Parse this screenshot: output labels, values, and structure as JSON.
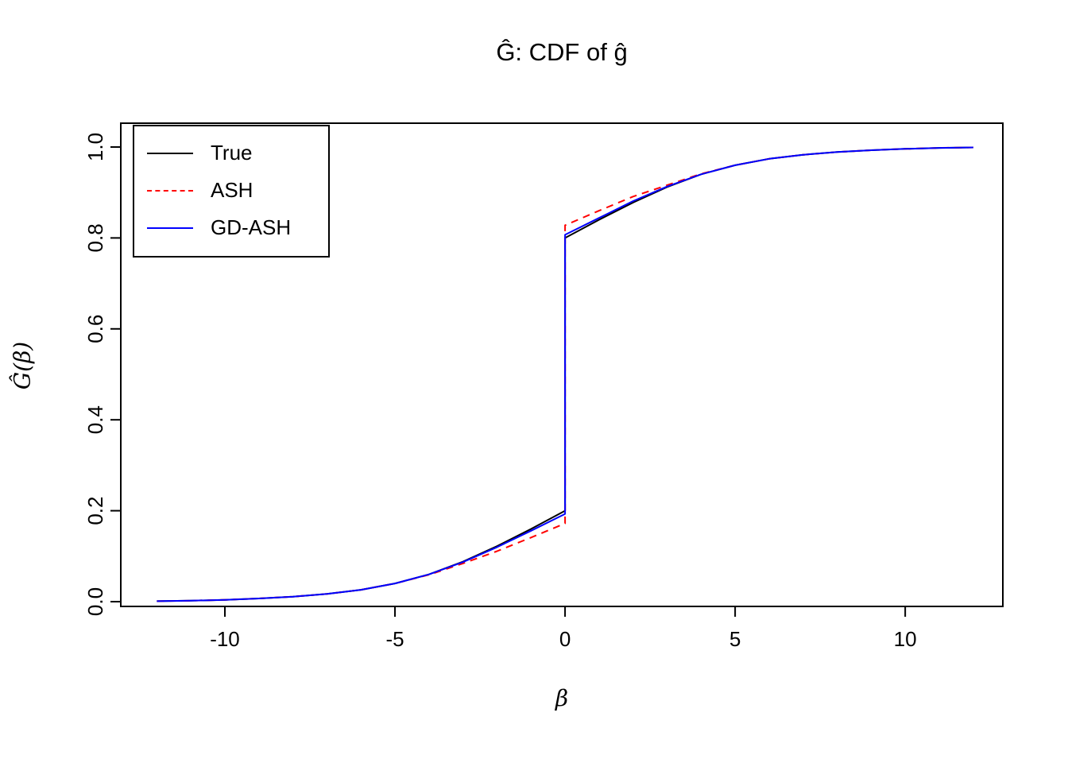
{
  "page": {
    "title": "Ĝ: CDF of ĝ"
  },
  "axes": {
    "x": {
      "label": "β",
      "tick_values": [
        -10,
        -5,
        0,
        5,
        10
      ],
      "tick_labels": [
        "-10",
        "-5",
        "0",
        "5",
        "10"
      ],
      "range": [
        -13.06,
        12.87
      ]
    },
    "y": {
      "label": "Ĝ(β)",
      "tick_values": [
        0,
        0.2,
        0.4,
        0.6,
        0.8,
        1.0
      ],
      "tick_labels": [
        "0.0",
        "0.2",
        "0.4",
        "0.6",
        "0.8",
        "1.0"
      ],
      "range": [
        -0.0105,
        1.0524
      ]
    }
  },
  "legend": {
    "items": [
      {
        "label": "True",
        "color": "#000000",
        "dash": "solid"
      },
      {
        "label": "ASH",
        "color": "#FF0000",
        "dash": "dashed"
      },
      {
        "label": "GD-ASH",
        "color": "#0000FF",
        "dash": "solid"
      }
    ]
  },
  "chart_data": {
    "type": "line",
    "title": "Ĝ: CDF of ĝ",
    "xlabel": "β",
    "ylabel": "Ĝ(β)",
    "xlim": [
      -12,
      12
    ],
    "ylim": [
      0,
      1
    ],
    "grid": false,
    "legend_position": "top-left",
    "x": [
      -12,
      -11,
      -10,
      -9,
      -8,
      -7,
      -6,
      -5,
      -4,
      -3,
      -2,
      -1,
      0,
      0,
      1,
      2,
      3,
      4,
      5,
      6,
      7,
      8,
      9,
      10,
      11,
      12
    ],
    "series": [
      {
        "name": "True",
        "color": "#000000",
        "style": "solid",
        "values": [
          0.001,
          0.002,
          0.004,
          0.007,
          0.011,
          0.017,
          0.026,
          0.04,
          0.06,
          0.088,
          0.122,
          0.16,
          0.2,
          0.8,
          0.84,
          0.878,
          0.912,
          0.94,
          0.96,
          0.974,
          0.983,
          0.989,
          0.993,
          0.996,
          0.998,
          0.999
        ]
      },
      {
        "name": "ASH",
        "color": "#FF0000",
        "style": "dashed",
        "values": [
          0.001,
          0.002,
          0.004,
          0.007,
          0.011,
          0.017,
          0.026,
          0.04,
          0.059,
          0.084,
          0.111,
          0.141,
          0.172,
          0.828,
          0.86,
          0.891,
          0.916,
          0.941,
          0.96,
          0.974,
          0.983,
          0.989,
          0.993,
          0.996,
          0.998,
          0.999
        ]
      },
      {
        "name": "GD-ASH",
        "color": "#0000FF",
        "style": "solid",
        "values": [
          0.001,
          0.002,
          0.004,
          0.007,
          0.011,
          0.017,
          0.026,
          0.04,
          0.06,
          0.087,
          0.12,
          0.156,
          0.193,
          0.807,
          0.844,
          0.881,
          0.913,
          0.94,
          0.96,
          0.974,
          0.983,
          0.989,
          0.993,
          0.996,
          0.998,
          0.999
        ]
      }
    ]
  }
}
